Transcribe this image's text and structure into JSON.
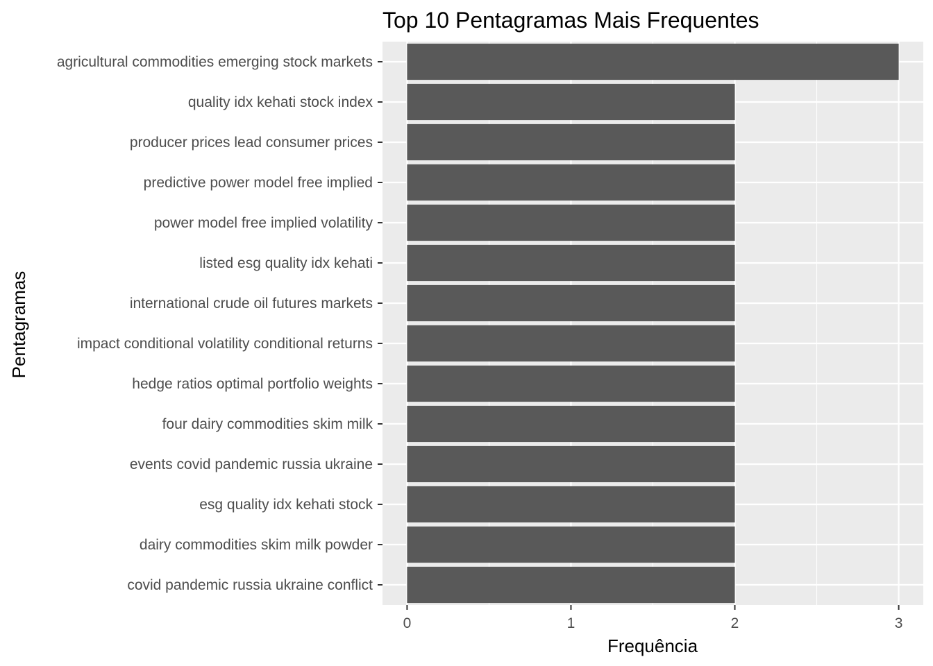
{
  "chart_data": {
    "type": "bar",
    "orientation": "horizontal",
    "title": "Top 10 Pentagramas Mais Frequentes",
    "xlabel": "Frequência",
    "ylabel": "Pentagramas",
    "categories": [
      "agricultural commodities emerging stock markets",
      "quality idx kehati stock index",
      "producer prices lead consumer prices",
      "predictive power model free implied",
      "power model free implied volatility",
      "listed esg quality idx kehati",
      "international crude oil futures markets",
      "impact conditional volatility conditional returns",
      "hedge ratios optimal portfolio weights",
      "four dairy commodities skim milk",
      "events covid pandemic russia ukraine",
      "esg quality idx kehati stock",
      "dairy commodities skim milk powder",
      "covid pandemic russia ukraine conflict"
    ],
    "values": [
      3,
      2,
      2,
      2,
      2,
      2,
      2,
      2,
      2,
      2,
      2,
      2,
      2,
      2
    ],
    "xticks": [
      "0",
      "1",
      "2",
      "3"
    ],
    "xlim": [
      -0.15,
      3.15
    ],
    "grid": true,
    "legend": "none",
    "colors": {
      "bar": "#595959",
      "panel": "#ebebeb",
      "grid_major": "#ffffff",
      "tick_text": "#4d4d4d"
    }
  }
}
